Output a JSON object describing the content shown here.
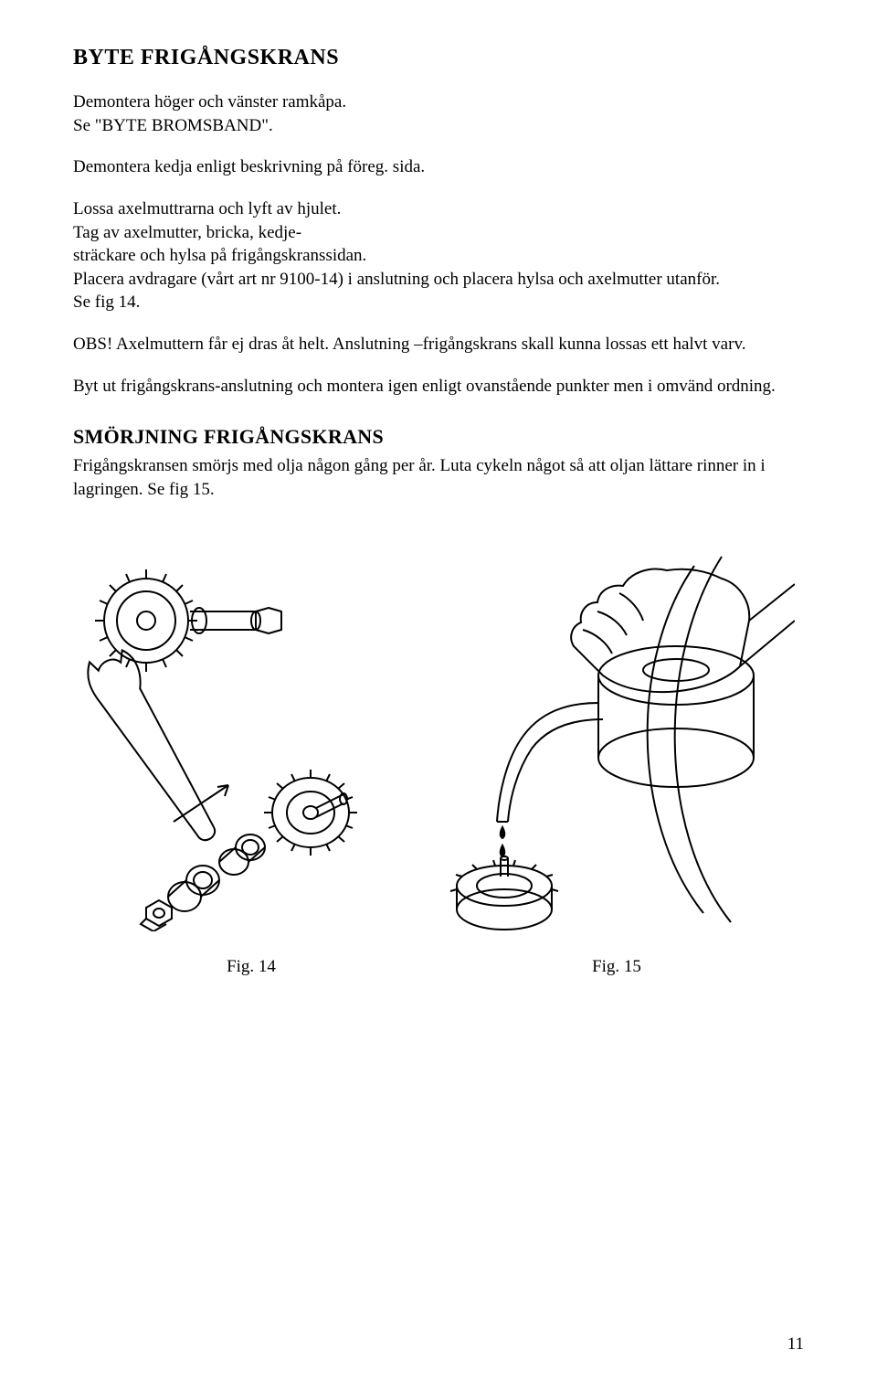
{
  "page": {
    "number": "11"
  },
  "section1": {
    "heading": "BYTE FRIGÅNGSKRANS",
    "p1": "Demontera höger och vänster ramkåpa.\nSe \"BYTE BROMSBAND\".",
    "p2": "Demontera kedja enligt beskrivning på föreg. sida.",
    "p3": "Lossa axelmuttrarna och lyft av hjulet.\nTag av axelmutter, bricka, kedje-\nsträckare och hylsa på frigångskranssidan.\nPlacera avdragare (vårt art nr 9100-14) i anslutning och placera hylsa och axelmutter utanför.\n Se fig 14.",
    "p4": "OBS! Axelmuttern får ej dras åt helt. Anslutning –frigångskrans skall kunna lossas ett halvt varv.",
    "p5": "Byt ut frigångskrans-anslutning och montera igen enligt ovanstående punkter men i omvänd ordning."
  },
  "section2": {
    "heading": "SMÖRJNING FRIGÅNGSKRANS",
    "p1": "Frigångskransen smörjs med olja någon gång per år. Luta cykeln något så att oljan lättare rinner in i lagringen. Se fig 15."
  },
  "figures": {
    "fig14_caption": "Fig. 14",
    "fig15_caption": "Fig. 15"
  }
}
